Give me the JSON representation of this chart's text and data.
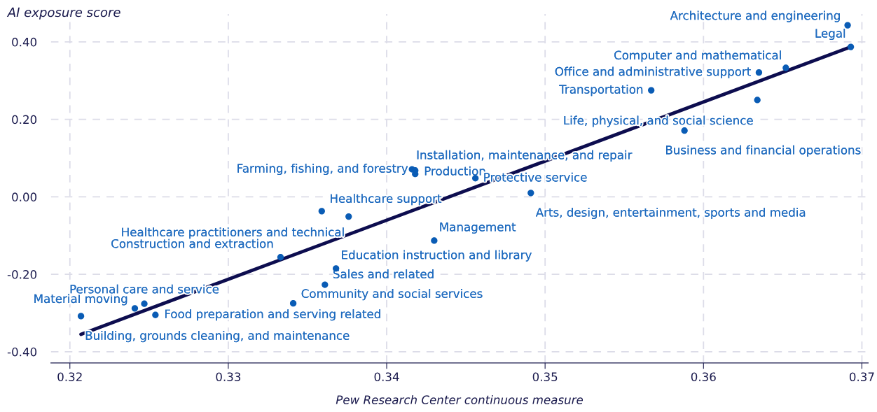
{
  "chart_data": {
    "type": "scatter",
    "xlabel": "Pew Research Center continuous measure",
    "ylabel": "AI exposure score",
    "xlim": [
      0.3188,
      0.3704
    ],
    "ylim": [
      -0.429,
      0.472
    ],
    "xticks": [
      0.32,
      0.33,
      0.34,
      0.35,
      0.36,
      0.37
    ],
    "yticks": [
      {
        "value": 0.4,
        "label": "0.40"
      },
      {
        "value": 0.2,
        "label": "0.20"
      },
      {
        "value": 0,
        "label": "0.00"
      },
      {
        "value": -0.2,
        "label": "-0.20"
      },
      {
        "value": -0.4,
        "label": "-0.40"
      }
    ],
    "grid": true,
    "series": [
      {
        "marker": "circle",
        "color": "#0a5cb5",
        "x": [
          0.3691,
          0.3693,
          0.3652,
          0.3635,
          0.3567,
          0.3634,
          0.3588,
          0.3416,
          0.3418,
          0.3418,
          0.3456,
          0.3491,
          0.3359,
          0.3376,
          0.343,
          0.3333,
          0.3368,
          0.3361,
          0.3341,
          0.3241,
          0.3247,
          0.3254,
          0.3207
        ],
        "values": [
          0.443,
          0.387,
          0.333,
          0.321,
          0.275,
          0.25,
          0.171,
          0.071,
          0.068,
          0.059,
          0.048,
          0.01,
          -0.037,
          -0.051,
          -0.113,
          -0.156,
          -0.185,
          -0.227,
          -0.275,
          -0.288,
          -0.276,
          -0.305,
          -0.308
        ]
      },
      {
        "type": "line",
        "color": "#0d0d4f",
        "line_style": "solid",
        "x": [
          0.3207,
          0.3693
        ],
        "values": [
          -0.355,
          0.387
        ]
      }
    ],
    "annotations": [
      {
        "text": "Architecture and engineering",
        "x": 0.3691,
        "y": 0.443
      },
      {
        "text": "Legal",
        "x": 0.3693,
        "y": 0.387
      },
      {
        "text": "Computer and mathematical",
        "x": 0.3652,
        "y": 0.333
      },
      {
        "text": "Office and administrative support",
        "x": 0.3635,
        "y": 0.321
      },
      {
        "text": "Transportation",
        "x": 0.3567,
        "y": 0.275
      },
      {
        "text": "Life, physical, and social science",
        "x": 0.3634,
        "y": 0.25
      },
      {
        "text": "Business and financial operations",
        "x": 0.3588,
        "y": 0.171
      },
      {
        "text": "Farming, fishing, and forestry",
        "x": 0.3416,
        "y": 0.071
      },
      {
        "text": "Installation, maintenance, and repair",
        "x": 0.3418,
        "y": 0.068
      },
      {
        "text": "Production",
        "x": 0.3418,
        "y": 0.059
      },
      {
        "text": "Protective service",
        "x": 0.3456,
        "y": 0.048
      },
      {
        "text": "Arts, design, entertainment, sports and media",
        "x": 0.3491,
        "y": 0.01
      },
      {
        "text": "Healthcare support",
        "x": 0.3359,
        "y": -0.037
      },
      {
        "text": "Healthcare practitioners and technical",
        "x": 0.3376,
        "y": -0.051
      },
      {
        "text": "Management",
        "x": 0.343,
        "y": -0.113
      },
      {
        "text": "Construction and extraction",
        "x": 0.3333,
        "y": -0.156
      },
      {
        "text": "Education instruction and library",
        "x": 0.3368,
        "y": -0.185
      },
      {
        "text": "Sales and related",
        "x": 0.3361,
        "y": -0.227
      },
      {
        "text": "Community and social services",
        "x": 0.3341,
        "y": -0.275
      },
      {
        "text": "Material moving",
        "x": 0.3241,
        "y": -0.288
      },
      {
        "text": "Personal care and service",
        "x": 0.3247,
        "y": -0.276
      },
      {
        "text": "Food preparation and serving related",
        "x": 0.3254,
        "y": -0.305
      },
      {
        "text": "Building, grounds cleaning, and maintenance",
        "x": 0.3207,
        "y": -0.308
      }
    ]
  }
}
